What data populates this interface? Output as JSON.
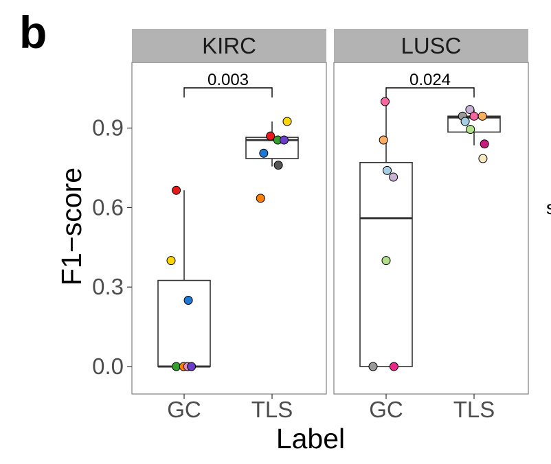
{
  "figure": {
    "panel_label": "b",
    "xlabel": "Label",
    "ylabel": "F1−score",
    "right_edge_fragment": "s"
  },
  "chart_data": {
    "type": "boxplot",
    "title": "",
    "xlabel": "Label",
    "ylabel": "F1−score",
    "ylim": [
      -0.1,
      1.15
    ],
    "yticks": [
      0.0,
      0.3,
      0.6,
      0.9
    ],
    "ytick_labels": [
      "0.0",
      "0.3",
      "0.6",
      "0.9"
    ],
    "categories": [
      "GC",
      "TLS"
    ],
    "grid": false,
    "facets": [
      {
        "name": "KIRC",
        "p_value": "0.003",
        "boxes": [
          {
            "label": "GC",
            "q1": 0.0,
            "median": 0.0,
            "q3": 0.325,
            "whisker_low": 0.0,
            "whisker_high": 0.665
          },
          {
            "label": "TLS",
            "q1": 0.785,
            "median": 0.855,
            "q3": 0.865,
            "whisker_low": 0.755,
            "whisker_high": 0.925
          }
        ],
        "points": [
          {
            "group": "GC",
            "jitter": -0.15,
            "value": 0.665,
            "color": "#E41A1C"
          },
          {
            "group": "GC",
            "jitter": -0.25,
            "value": 0.4,
            "color": "#FFD700"
          },
          {
            "group": "GC",
            "jitter": 0.08,
            "value": 0.25,
            "color": "#1F78D1"
          },
          {
            "group": "GC",
            "jitter": -0.15,
            "value": 0.0,
            "color": "#33A02C"
          },
          {
            "group": "GC",
            "jitter": -0.01,
            "value": 0.0,
            "color": "#FF7F00"
          },
          {
            "group": "GC",
            "jitter": 0.07,
            "value": 0.0,
            "color": "#E78AC3"
          },
          {
            "group": "GC",
            "jitter": 0.14,
            "value": 0.0,
            "color": "#6A3DCA"
          },
          {
            "group": "TLS",
            "jitter": -0.03,
            "value": 0.87,
            "color": "#E41A1C"
          },
          {
            "group": "TLS",
            "jitter": 0.29,
            "value": 0.925,
            "color": "#FFD700"
          },
          {
            "group": "TLS",
            "jitter": -0.16,
            "value": 0.805,
            "color": "#1F78D1"
          },
          {
            "group": "TLS",
            "jitter": 0.11,
            "value": 0.855,
            "color": "#33A02C"
          },
          {
            "group": "TLS",
            "jitter": -0.22,
            "value": 0.635,
            "color": "#FF7F00"
          },
          {
            "group": "TLS",
            "jitter": 0.23,
            "value": 0.855,
            "color": "#6A3DCA"
          },
          {
            "group": "TLS",
            "jitter": 0.12,
            "value": 0.76,
            "color": "#555555"
          }
        ]
      },
      {
        "name": "LUSC",
        "p_value": "0.024",
        "boxes": [
          {
            "label": "GC",
            "q1": 0.0,
            "median": 0.56,
            "q3": 0.77,
            "whisker_low": 0.0,
            "whisker_high": 1.0
          },
          {
            "label": "TLS",
            "q1": 0.885,
            "median": 0.94,
            "q3": 0.945,
            "whisker_low": 0.835,
            "whisker_high": 0.97
          }
        ],
        "points": [
          {
            "group": "GC",
            "jitter": -0.02,
            "value": 1.0,
            "color": "#F768A1"
          },
          {
            "group": "GC",
            "jitter": -0.05,
            "value": 0.855,
            "color": "#FDAE61"
          },
          {
            "group": "GC",
            "jitter": 0.02,
            "value": 0.74,
            "color": "#A6CEE3"
          },
          {
            "group": "GC",
            "jitter": 0.14,
            "value": 0.715,
            "color": "#CAB2D6"
          },
          {
            "group": "GC",
            "jitter": 0.0,
            "value": 0.4,
            "color": "#B2DF8A"
          },
          {
            "group": "GC",
            "jitter": -0.25,
            "value": 0.0,
            "color": "#999999"
          },
          {
            "group": "GC",
            "jitter": 0.15,
            "value": 0.0,
            "color": "#E7298A"
          },
          {
            "group": "TLS",
            "jitter": -0.22,
            "value": 0.945,
            "color": "#999999"
          },
          {
            "group": "TLS",
            "jitter": -0.17,
            "value": 0.925,
            "color": "#A6CEE3"
          },
          {
            "group": "TLS",
            "jitter": -0.08,
            "value": 0.97,
            "color": "#CAB2D6"
          },
          {
            "group": "TLS",
            "jitter": 0.0,
            "value": 0.945,
            "color": "#F768A1"
          },
          {
            "group": "TLS",
            "jitter": 0.16,
            "value": 0.945,
            "color": "#FDAE61"
          },
          {
            "group": "TLS",
            "jitter": -0.07,
            "value": 0.895,
            "color": "#B2DF8A"
          },
          {
            "group": "TLS",
            "jitter": 0.17,
            "value": 0.785,
            "color": "#F6E8C3"
          },
          {
            "group": "TLS",
            "jitter": 0.2,
            "value": 0.84,
            "color": "#C51B7D"
          }
        ]
      }
    ]
  }
}
